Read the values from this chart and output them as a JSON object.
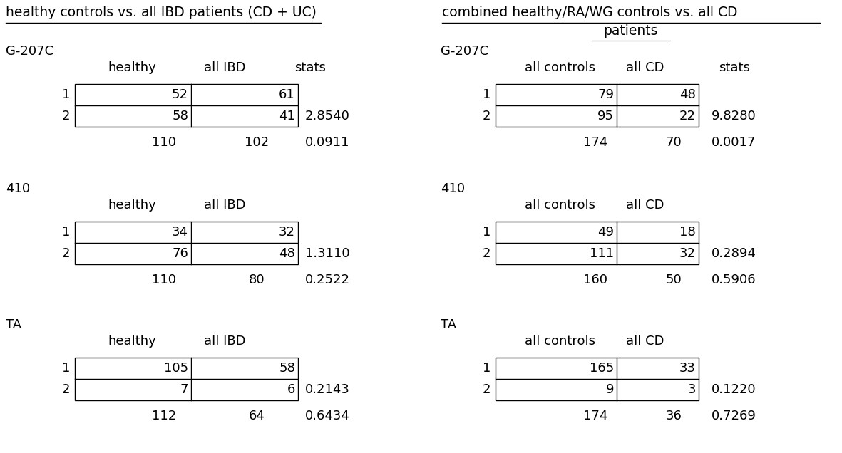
{
  "left_title": "healthy controls vs. all IBD patients (CD + UC)",
  "right_title_line1": "combined healthy/RA/WG controls vs. all CD",
  "right_title_line2": "patients",
  "left_panels": [
    {
      "label": "G-207C",
      "col1_header": "healthy",
      "col2_header": "all IBD",
      "stats_header": "stats",
      "row1": [
        "52",
        "61"
      ],
      "row2": [
        "58",
        "41"
      ],
      "total": [
        "110",
        "102"
      ],
      "stat1": "2.8540",
      "stat2": "0.0911"
    },
    {
      "label": "410",
      "col1_header": "healthy",
      "col2_header": "all IBD",
      "stats_header": "",
      "row1": [
        "34",
        "32"
      ],
      "row2": [
        "76",
        "48"
      ],
      "total": [
        "110",
        "80"
      ],
      "stat1": "1.3110",
      "stat2": "0.2522"
    },
    {
      "label": "TA",
      "col1_header": "healthy",
      "col2_header": "all IBD",
      "stats_header": "",
      "row1": [
        "105",
        "58"
      ],
      "row2": [
        "7",
        "6"
      ],
      "total": [
        "112",
        "64"
      ],
      "stat1": "0.2143",
      "stat2": "0.6434"
    }
  ],
  "right_panels": [
    {
      "label": "G-207C",
      "col1_header": "all controls",
      "col2_header": "all CD",
      "stats_header": "stats",
      "row1": [
        "79",
        "48"
      ],
      "row2": [
        "95",
        "22"
      ],
      "total": [
        "174",
        "70"
      ],
      "stat1": "9.8280",
      "stat2": "0.0017"
    },
    {
      "label": "410",
      "col1_header": "all controls",
      "col2_header": "all CD",
      "stats_header": "",
      "row1": [
        "49",
        "18"
      ],
      "row2": [
        "111",
        "32"
      ],
      "total": [
        "160",
        "50"
      ],
      "stat1": "0.2894",
      "stat2": "0.5906"
    },
    {
      "label": "TA",
      "col1_header": "all controls",
      "col2_header": "all CD",
      "stats_header": "",
      "row1": [
        "165",
        "33"
      ],
      "row2": [
        "9",
        "3"
      ],
      "total": [
        "174",
        "36"
      ],
      "stat1": "0.1220",
      "stat2": "0.7269"
    }
  ],
  "bg_color": "#ffffff",
  "text_color": "#000000",
  "font_size": 13,
  "title_font_size": 13.5
}
